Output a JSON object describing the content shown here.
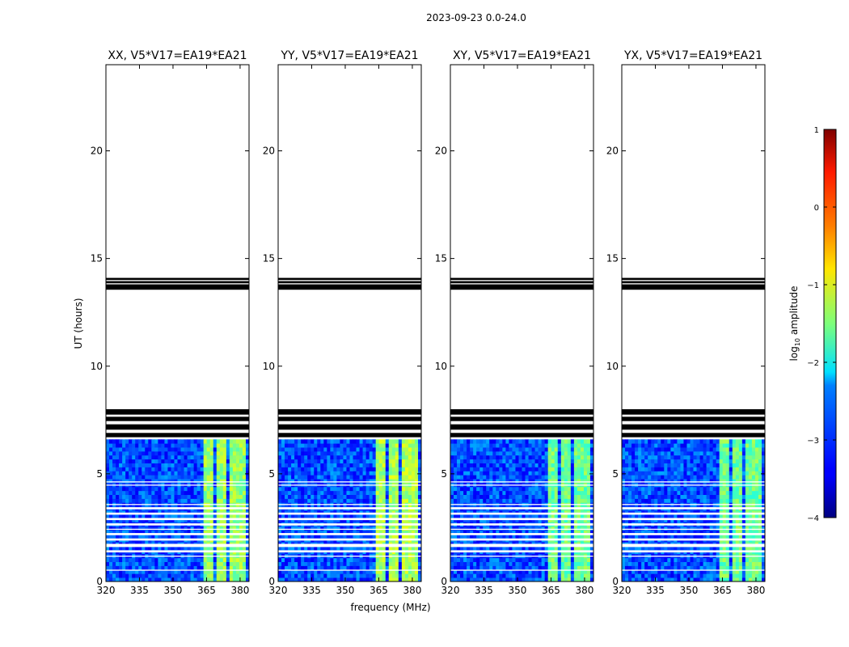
{
  "figure_title": "2023-09-23 0.0-24.0",
  "colorbar": {
    "label_base": "log",
    "label_sub": "10",
    "label_rest": " amplitude",
    "range": [
      -4,
      1
    ],
    "ticks": [
      "1",
      "0",
      "−1",
      "−2",
      "−3",
      "−4"
    ],
    "colormap": "jet"
  },
  "chart_data": {
    "type": "heatmap",
    "xlabel": "frequency (MHz)",
    "ylabel": "UT (hours)",
    "xlim": [
      320,
      384
    ],
    "ylim": [
      0,
      24
    ],
    "x_ticks": [
      "320",
      "335",
      "350",
      "365",
      "380"
    ],
    "y_ticks": [
      "0",
      "5",
      "10",
      "15",
      "20"
    ],
    "panels": [
      {
        "title": "XX, V5*V17=EA19*EA21",
        "mean_level": -3.0,
        "rfi_level": -1.4
      },
      {
        "title": "YY, V5*V17=EA19*EA21",
        "mean_level": -3.0,
        "rfi_level": -1.3
      },
      {
        "title": "XY, V5*V17=EA19*EA21",
        "mean_level": -3.0,
        "rfi_level": -1.6
      },
      {
        "title": "YX, V5*V17=EA19*EA21",
        "mean_level": -3.0,
        "rfi_level": -1.6
      }
    ],
    "data_hours": [
      0.0,
      6.6
    ],
    "rfi_channels_mhz": [
      [
        363.5,
        368
      ],
      [
        370,
        374.5
      ],
      [
        375.5,
        378
      ],
      [
        378.5,
        382
      ]
    ],
    "flagged_hours_black": [
      [
        6.7,
        6.9
      ],
      [
        7.05,
        7.3
      ],
      [
        7.45,
        7.65
      ],
      [
        7.75,
        8.0
      ],
      [
        13.55,
        13.8
      ],
      [
        13.85,
        13.95
      ],
      [
        14.0,
        14.1
      ]
    ],
    "flagged_hours_white": [
      [
        0.5,
        0.55
      ],
      [
        1.15,
        1.2
      ],
      [
        1.35,
        1.45
      ],
      [
        1.6,
        1.75
      ],
      [
        1.9,
        2.0
      ],
      [
        2.15,
        2.25
      ],
      [
        2.4,
        2.45
      ],
      [
        2.6,
        2.7
      ],
      [
        2.85,
        2.95
      ],
      [
        3.1,
        3.2
      ],
      [
        3.35,
        3.45
      ],
      [
        3.55,
        3.6
      ],
      [
        4.45,
        4.5
      ],
      [
        4.6,
        4.65
      ]
    ]
  }
}
